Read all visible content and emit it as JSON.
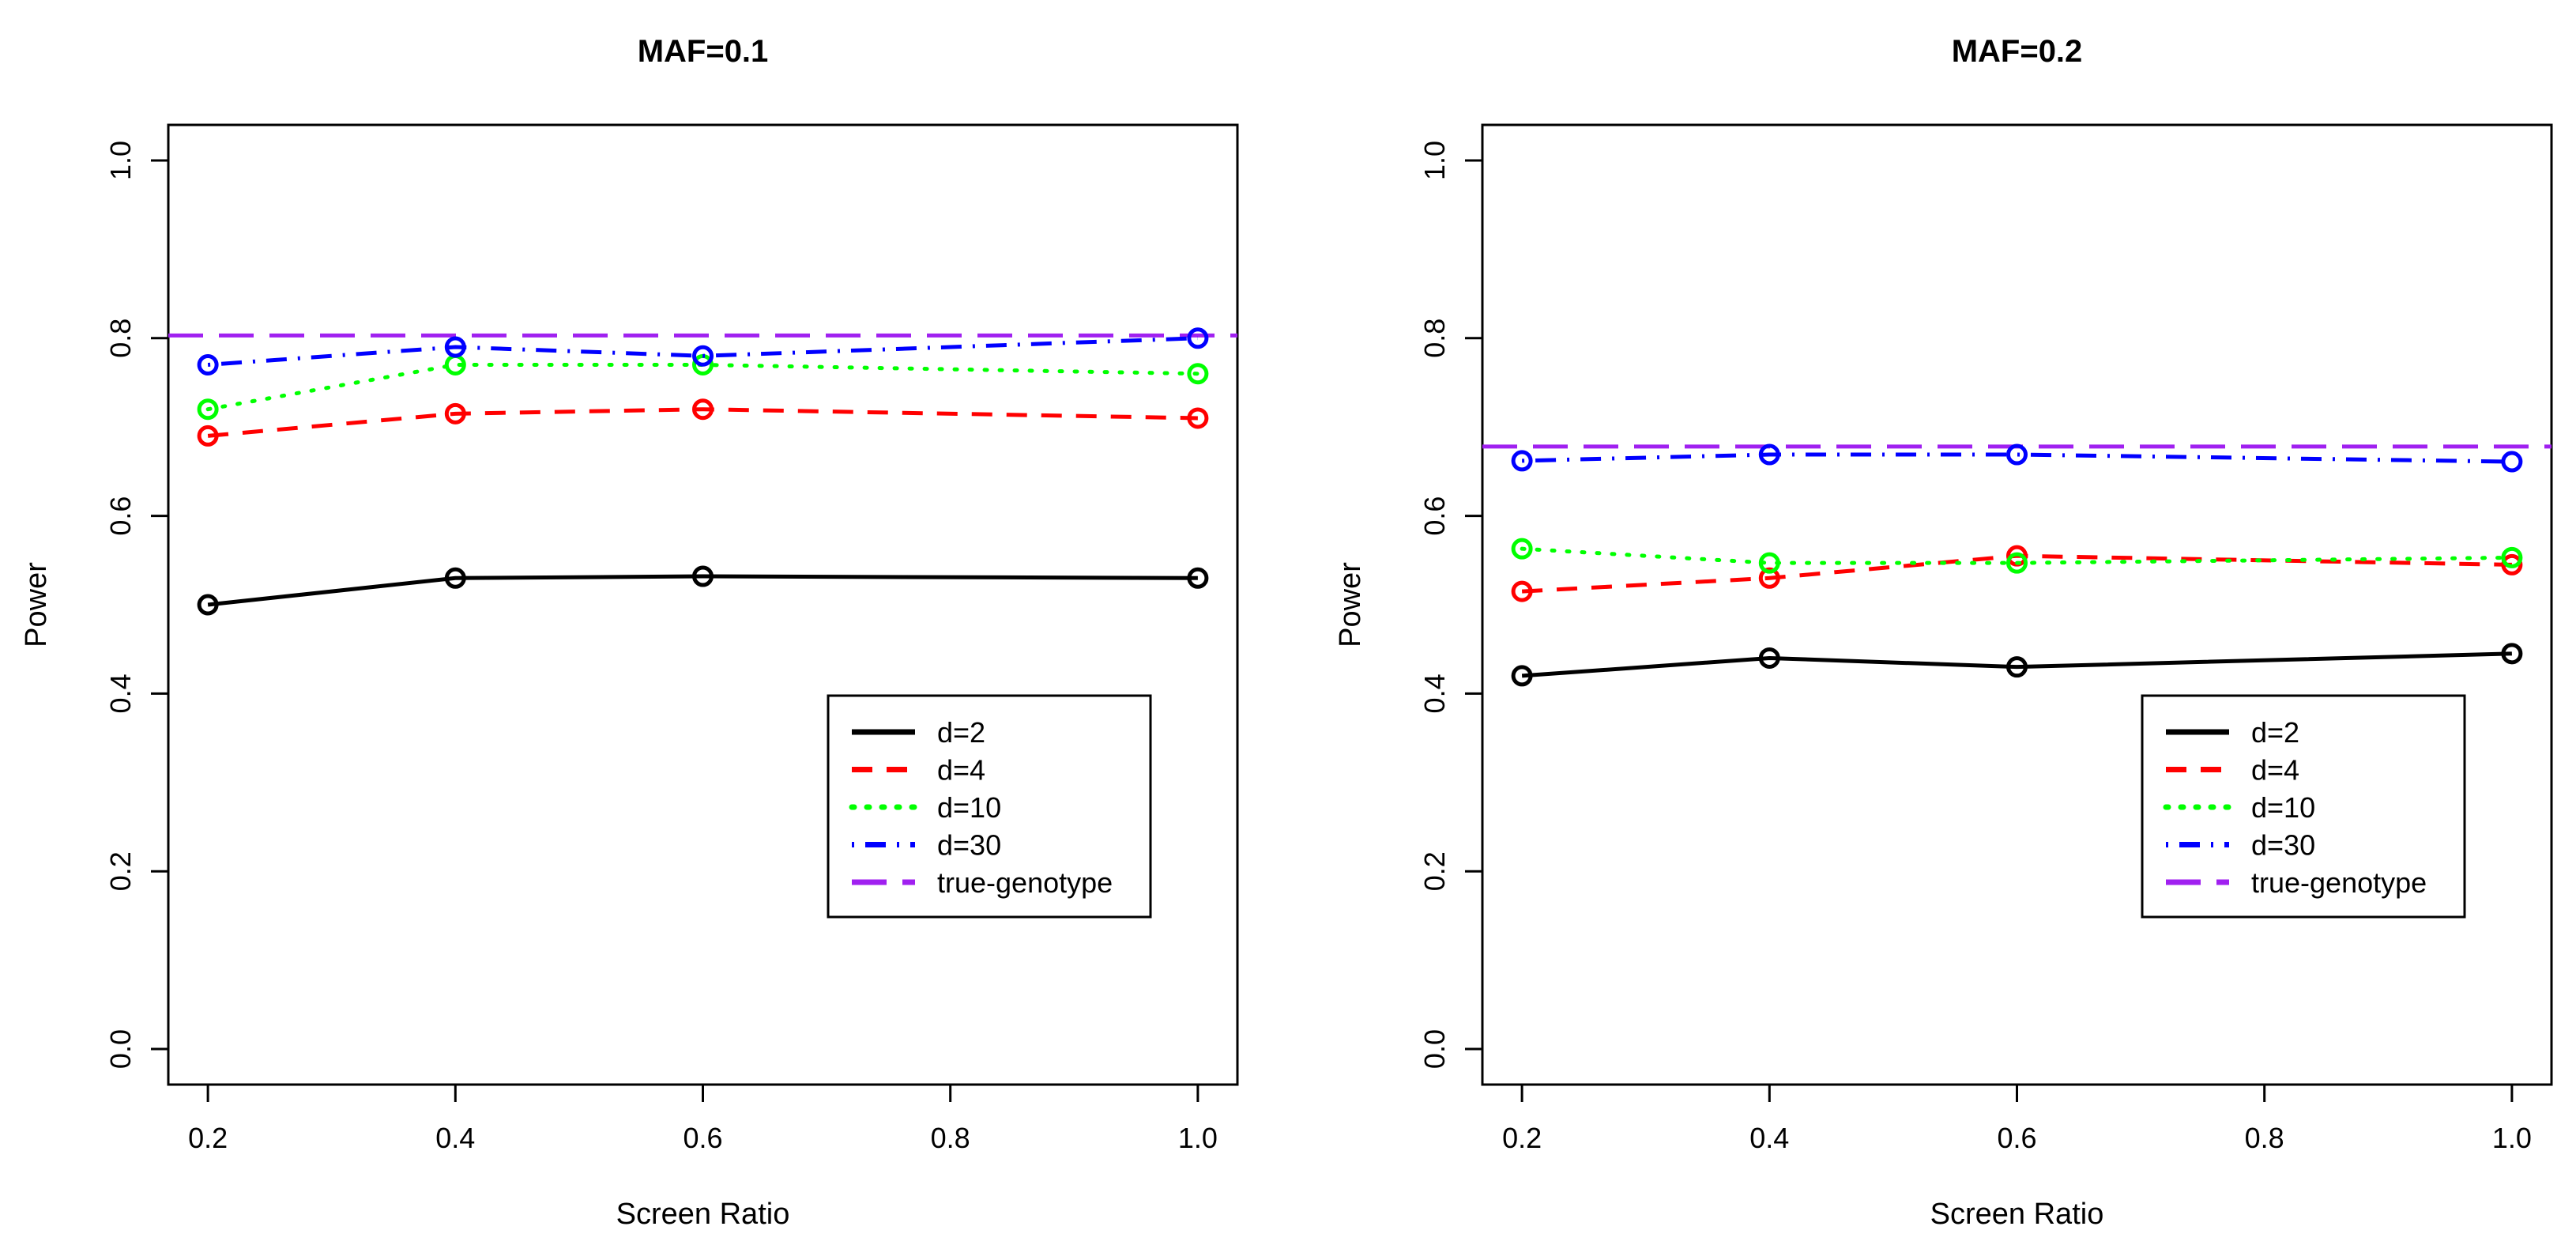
{
  "chart_data": [
    {
      "type": "line",
      "title": "MAF=0.1",
      "xlabel": "Screen Ratio",
      "ylabel": "Power",
      "xlim": [
        0.2,
        1.0
      ],
      "ylim": [
        0.0,
        1.0
      ],
      "x": [
        0.2,
        0.4,
        0.6,
        1.0
      ],
      "x_ticks": [
        "0.2",
        "0.4",
        "0.6",
        "0.8",
        "1.0"
      ],
      "y_ticks": [
        "0.0",
        "0.2",
        "0.4",
        "0.6",
        "0.8",
        "1.0"
      ],
      "grid": false,
      "legend_position": "bottom-right",
      "series": [
        {
          "name": "d=2",
          "color": "#000000",
          "style": "solid",
          "values": [
            0.5,
            0.53,
            0.532,
            0.53
          ]
        },
        {
          "name": "d=4",
          "color": "#ff0000",
          "style": "dashed",
          "values": [
            0.69,
            0.715,
            0.72,
            0.71
          ]
        },
        {
          "name": "d=10",
          "color": "#00ff00",
          "style": "dotted",
          "values": [
            0.72,
            0.77,
            0.77,
            0.76
          ]
        },
        {
          "name": "d=30",
          "color": "#0000ff",
          "style": "dotdash",
          "values": [
            0.77,
            0.79,
            0.78,
            0.8
          ]
        }
      ],
      "reference_line": {
        "name": "true-genotype",
        "color": "#a020f0",
        "style": "longdash",
        "value": 0.803
      }
    },
    {
      "type": "line",
      "title": "MAF=0.2",
      "xlabel": "Screen Ratio",
      "ylabel": "Power",
      "xlim": [
        0.2,
        1.0
      ],
      "ylim": [
        0.0,
        1.0
      ],
      "x": [
        0.2,
        0.4,
        0.6,
        1.0
      ],
      "x_ticks": [
        "0.2",
        "0.4",
        "0.6",
        "0.8",
        "1.0"
      ],
      "y_ticks": [
        "0.0",
        "0.2",
        "0.4",
        "0.6",
        "0.8",
        "1.0"
      ],
      "grid": false,
      "legend_position": "bottom-right",
      "series": [
        {
          "name": "d=2",
          "color": "#000000",
          "style": "solid",
          "values": [
            0.42,
            0.44,
            0.43,
            0.445
          ]
        },
        {
          "name": "d=4",
          "color": "#ff0000",
          "style": "dashed",
          "values": [
            0.515,
            0.53,
            0.555,
            0.545
          ]
        },
        {
          "name": "d=10",
          "color": "#00ff00",
          "style": "dotted",
          "values": [
            0.563,
            0.547,
            0.547,
            0.553
          ]
        },
        {
          "name": "d=30",
          "color": "#0000ff",
          "style": "dotdash",
          "values": [
            0.662,
            0.669,
            0.669,
            0.661
          ]
        }
      ],
      "reference_line": {
        "name": "true-genotype",
        "color": "#a020f0",
        "style": "longdash",
        "value": 0.678
      }
    }
  ]
}
